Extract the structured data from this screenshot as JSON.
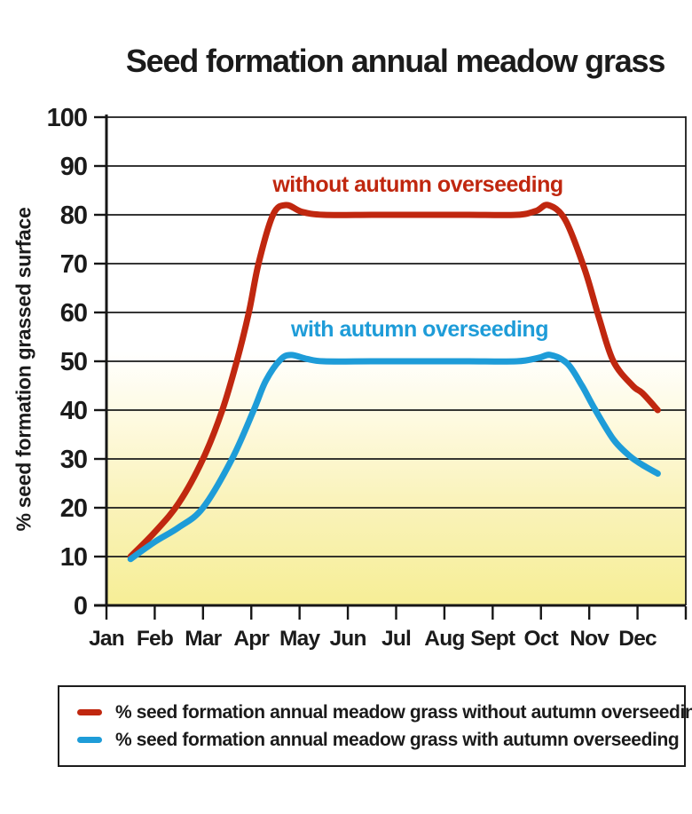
{
  "chart_data": {
    "type": "line",
    "title": "Seed formation annual meadow grass",
    "ylabel": "% seed formation grassed surface",
    "xlabel": "",
    "ylim": [
      0,
      100
    ],
    "yticks": [
      0,
      10,
      20,
      30,
      40,
      50,
      60,
      70,
      80,
      90,
      100
    ],
    "categories": [
      "Jan",
      "Feb",
      "Mar",
      "Apr",
      "May",
      "Jun",
      "Jul",
      "Aug",
      "Sept",
      "Oct",
      "Nov",
      "Dec"
    ],
    "grid": "horizontal",
    "legend_position": "bottom-box",
    "plot_bg_gradient_top": "#ffffff",
    "plot_bg_gradient_bottom": "#f6ee96",
    "axis_color": "#161616",
    "grid_color": "#1a1a1a",
    "series": [
      {
        "name": "% seed formation annual meadow grass without autumn overseeding",
        "label": "without autumn overseeding",
        "color": "#c0270f",
        "points": [
          [
            1.5,
            10
          ],
          [
            2,
            15
          ],
          [
            2.5,
            21
          ],
          [
            3,
            30
          ],
          [
            3.4,
            40
          ],
          [
            3.7,
            50
          ],
          [
            3.95,
            60
          ],
          [
            4.15,
            70
          ],
          [
            4.45,
            80
          ],
          [
            4.72,
            82
          ],
          [
            5.05,
            80.6
          ],
          [
            5.5,
            80
          ],
          [
            6.5,
            80
          ],
          [
            7.5,
            80
          ],
          [
            8.5,
            80
          ],
          [
            9.5,
            80
          ],
          [
            9.9,
            80.8
          ],
          [
            10.15,
            82
          ],
          [
            10.5,
            79
          ],
          [
            10.9,
            69
          ],
          [
            11.2,
            59
          ],
          [
            11.5,
            50
          ],
          [
            11.9,
            45
          ],
          [
            12.1,
            43.5
          ],
          [
            12.42,
            40
          ]
        ]
      },
      {
        "name": "% seed formation annual meadow grass with autumn overseeding",
        "label": "with autumn overseeding",
        "color": "#1e9cd8",
        "points": [
          [
            1.5,
            9.5
          ],
          [
            2,
            13
          ],
          [
            2.5,
            16
          ],
          [
            3,
            20
          ],
          [
            3.6,
            30
          ],
          [
            4.05,
            40
          ],
          [
            4.3,
            46
          ],
          [
            4.6,
            50.3
          ],
          [
            4.82,
            51.3
          ],
          [
            5.15,
            50.5
          ],
          [
            5.5,
            50
          ],
          [
            6.5,
            50
          ],
          [
            7.5,
            50
          ],
          [
            8.5,
            50
          ],
          [
            9.5,
            50
          ],
          [
            9.95,
            50.7
          ],
          [
            10.2,
            51.3
          ],
          [
            10.55,
            49.5
          ],
          [
            10.85,
            45
          ],
          [
            11.1,
            40.5
          ],
          [
            11.5,
            34
          ],
          [
            11.85,
            30.5
          ],
          [
            12.1,
            28.8
          ],
          [
            12.42,
            27
          ]
        ]
      }
    ]
  }
}
